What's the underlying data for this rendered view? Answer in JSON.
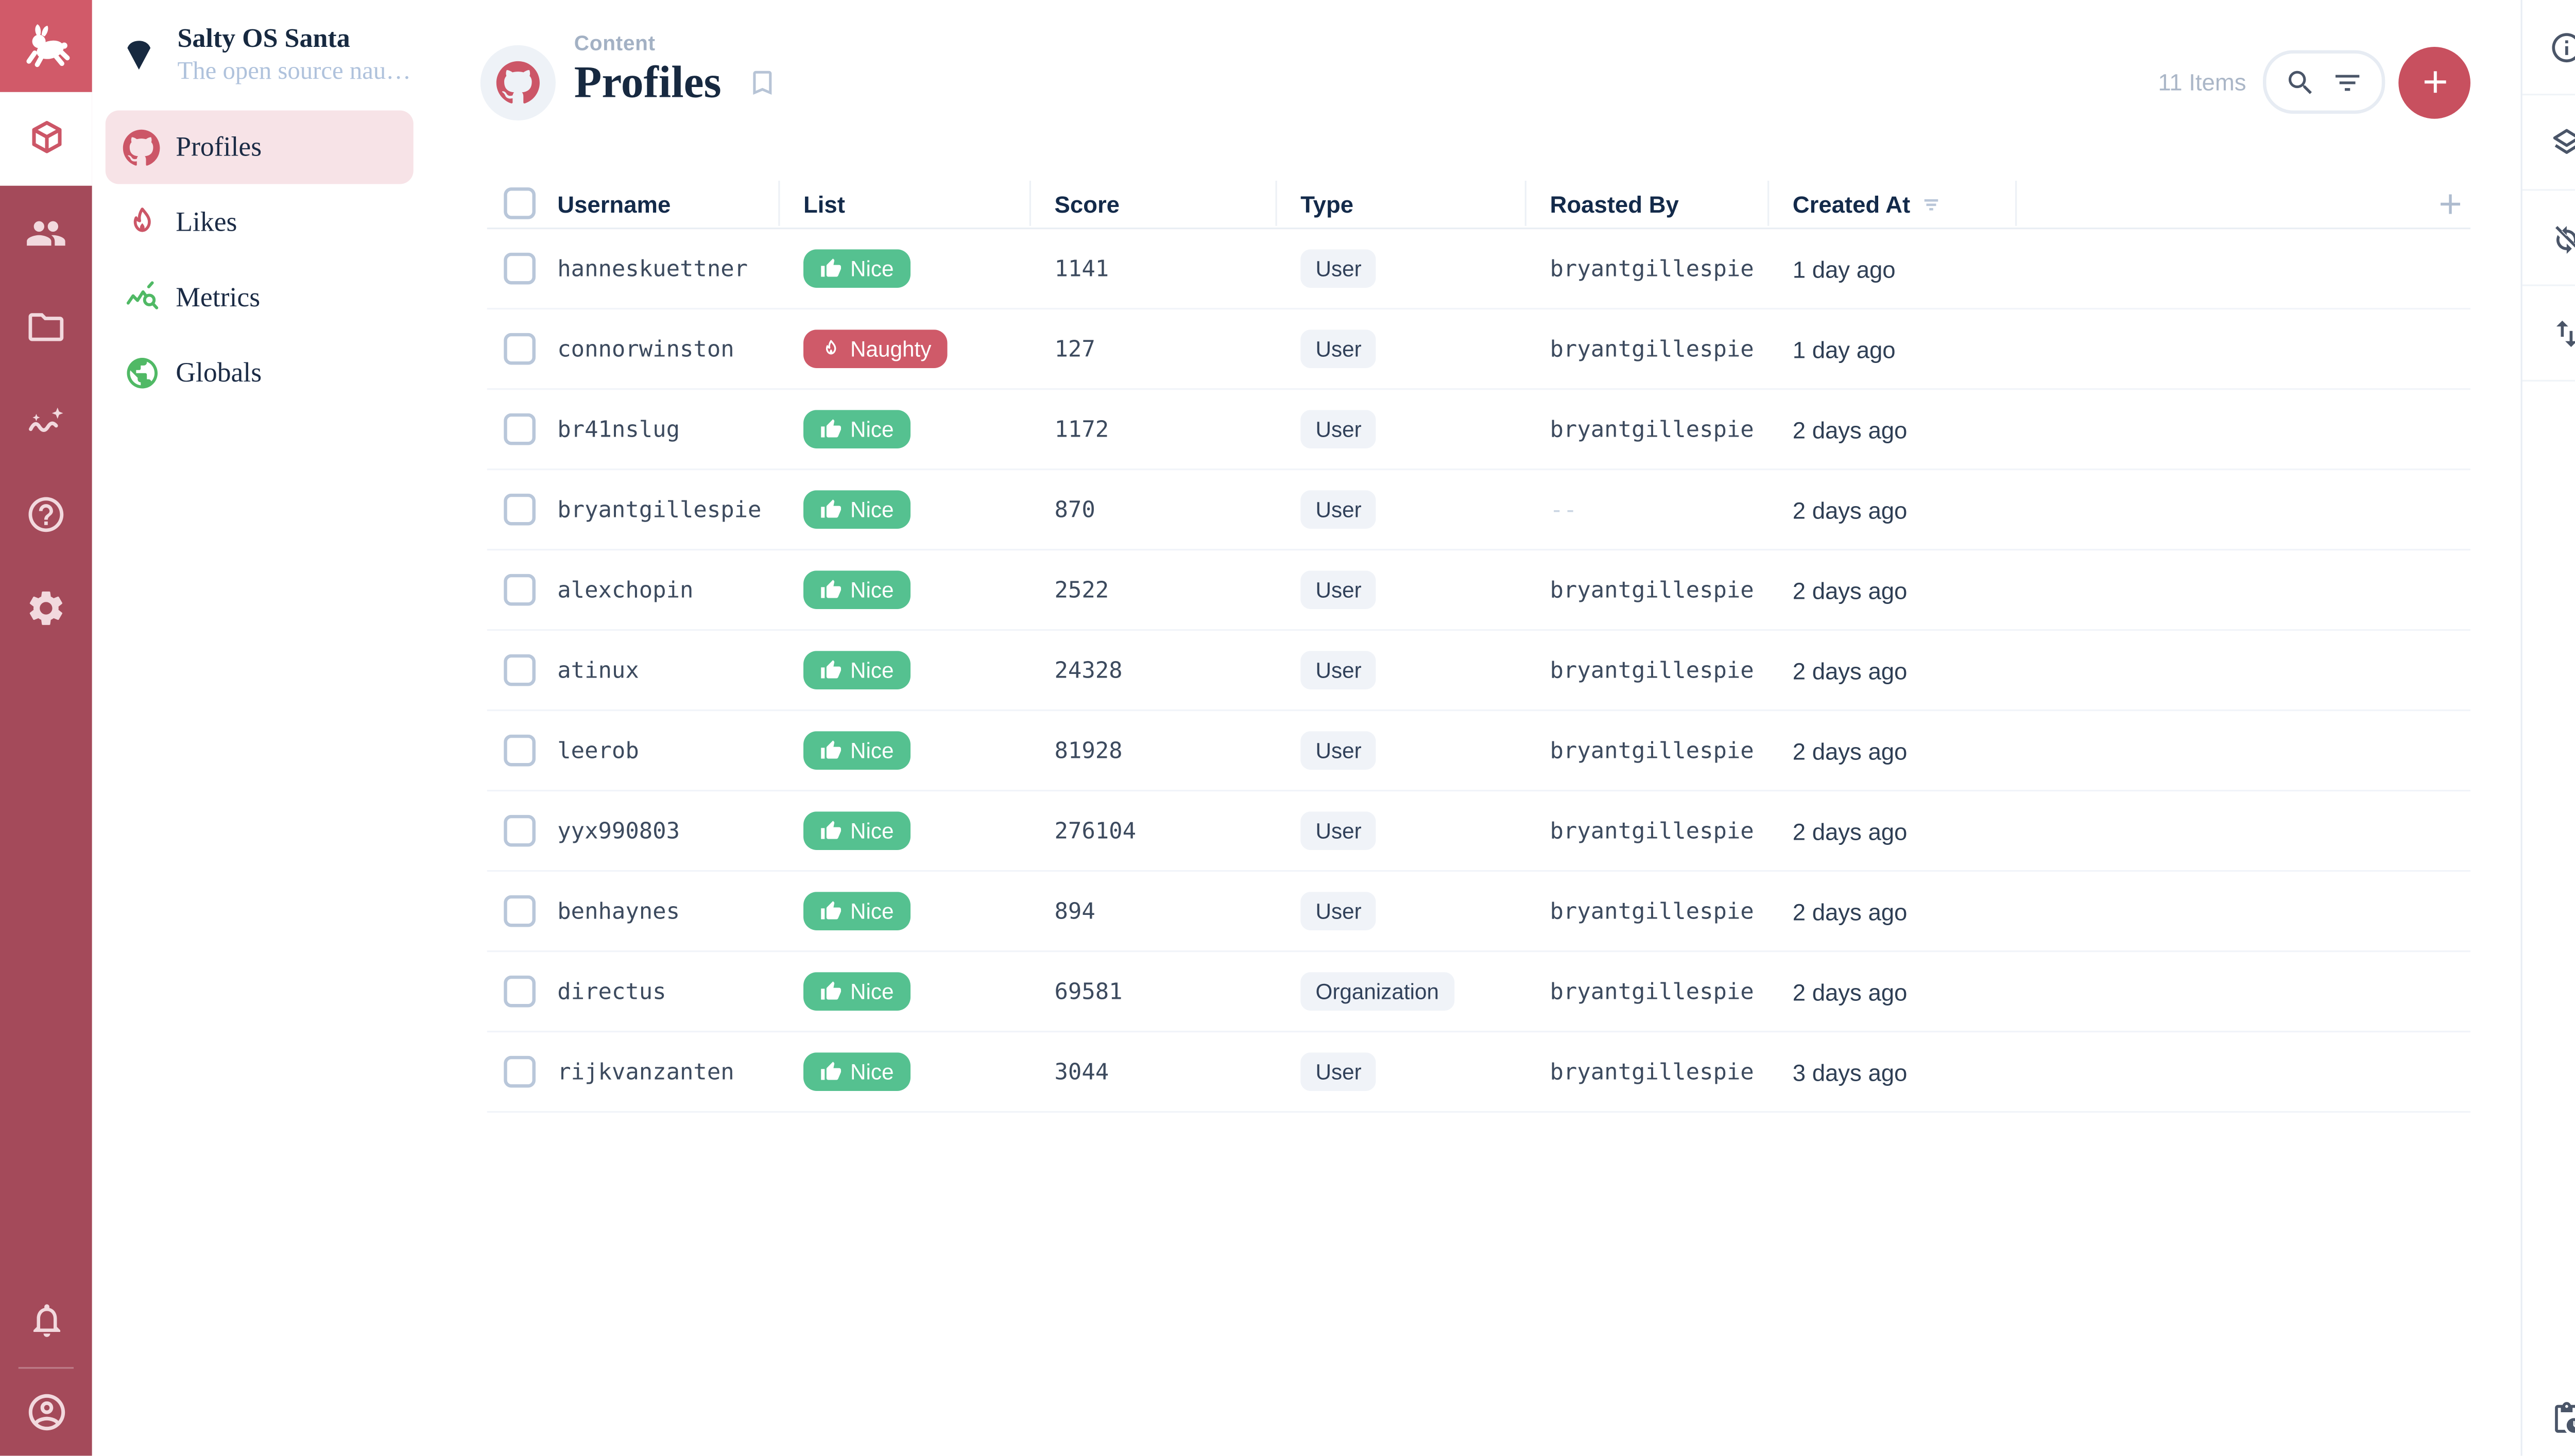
{
  "project": {
    "name": "Salty OS Santa",
    "tagline": "The open source naug...",
    "icon": "diamond-icon",
    "logo_icon": "rabbit-logo"
  },
  "module_bar": {
    "active": {
      "name": "module-content",
      "icon": "box-icon"
    },
    "items": [
      {
        "name": "module-user-directory",
        "icon": "users-icon"
      },
      {
        "name": "module-files",
        "icon": "folder-icon"
      },
      {
        "name": "module-insights",
        "icon": "insights-icon"
      },
      {
        "name": "module-help",
        "icon": "help-icon"
      },
      {
        "name": "module-settings",
        "icon": "settings-icon"
      }
    ],
    "bottom": [
      {
        "name": "notifications-button",
        "icon": "bell-icon"
      },
      {
        "name": "user-menu",
        "icon": "account-icon"
      }
    ]
  },
  "sidebar": {
    "items": [
      {
        "label": "Profiles",
        "icon": "github-icon",
        "color": "#CC5667",
        "active": true
      },
      {
        "label": "Likes",
        "icon": "flame-icon",
        "color": "#CC5667",
        "active": false
      },
      {
        "label": "Metrics",
        "icon": "chart-search-icon",
        "color": "#50B965",
        "active": false
      },
      {
        "label": "Globals",
        "icon": "globe-icon",
        "color": "#50B965",
        "active": false
      }
    ]
  },
  "header": {
    "breadcrumb": "Content",
    "title": "Profiles",
    "collection_icon": "github-icon",
    "bookmark_icon": "bookmark-icon"
  },
  "toolbar": {
    "items_count": "11 Items",
    "search_icon": "search-icon",
    "filter_icon": "filter-icon",
    "add_icon": "plus-icon"
  },
  "table": {
    "columns": [
      {
        "key": "username",
        "label": "Username"
      },
      {
        "key": "list",
        "label": "List"
      },
      {
        "key": "score",
        "label": "Score"
      },
      {
        "key": "type",
        "label": "Type"
      },
      {
        "key": "roasted_by",
        "label": "Roasted By"
      },
      {
        "key": "created_at",
        "label": "Created At",
        "sorted": true
      }
    ],
    "badges": {
      "nice": {
        "label": "Nice",
        "icon": "thumb-up-icon",
        "color": "#55C190"
      },
      "naughty": {
        "label": "Naughty",
        "icon": "flame-icon",
        "color": "#CF5A69"
      }
    },
    "null_display": "--",
    "rows": [
      {
        "username": "hanneskuettner",
        "list": "nice",
        "score": "1141",
        "type": "User",
        "roasted_by": "bryantgillespie",
        "created_at": "1 day ago"
      },
      {
        "username": "connorwinston",
        "list": "naughty",
        "score": "127",
        "type": "User",
        "roasted_by": "bryantgillespie",
        "created_at": "1 day ago"
      },
      {
        "username": "br41nslug",
        "list": "nice",
        "score": "1172",
        "type": "User",
        "roasted_by": "bryantgillespie",
        "created_at": "2 days ago"
      },
      {
        "username": "bryantgillespie",
        "list": "nice",
        "score": "870",
        "type": "User",
        "roasted_by": null,
        "created_at": "2 days ago"
      },
      {
        "username": "alexchopin",
        "list": "nice",
        "score": "2522",
        "type": "User",
        "roasted_by": "bryantgillespie",
        "created_at": "2 days ago"
      },
      {
        "username": "atinux",
        "list": "nice",
        "score": "24328",
        "type": "User",
        "roasted_by": "bryantgillespie",
        "created_at": "2 days ago"
      },
      {
        "username": "leerob",
        "list": "nice",
        "score": "81928",
        "type": "User",
        "roasted_by": "bryantgillespie",
        "created_at": "2 days ago"
      },
      {
        "username": "yyx990803",
        "list": "nice",
        "score": "276104",
        "type": "User",
        "roasted_by": "bryantgillespie",
        "created_at": "2 days ago"
      },
      {
        "username": "benhaynes",
        "list": "nice",
        "score": "894",
        "type": "User",
        "roasted_by": "bryantgillespie",
        "created_at": "2 days ago"
      },
      {
        "username": "directus",
        "list": "nice",
        "score": "69581",
        "type": "Organization",
        "roasted_by": "bryantgillespie",
        "created_at": "2 days ago"
      },
      {
        "username": "rijkvanzanten",
        "list": "nice",
        "score": "3044",
        "type": "User",
        "roasted_by": "bryantgillespie",
        "created_at": "3 days ago"
      }
    ]
  },
  "right_rail": {
    "items": [
      {
        "name": "sidebar-info-button",
        "icon": "info-icon"
      },
      {
        "name": "sidebar-layout-options-button",
        "icon": "layers-icon"
      },
      {
        "name": "sidebar-sync-button",
        "icon": "sync-disabled-icon"
      },
      {
        "name": "sidebar-import-export-button",
        "icon": "import-export-icon"
      }
    ],
    "bottom": {
      "name": "activity-log-button",
      "icon": "pending-actions-icon"
    }
  },
  "colors": {
    "brand": "#CC5667",
    "logo_bg": "#D15A69",
    "rail_bg": "#A44A5A",
    "rail_icon": "#F2D9DE",
    "active_nav": "#F7E3E7",
    "text_dark": "#172940",
    "tagline": "#AFC2DC",
    "add_btn": "#C8505F",
    "nice_green": "#55C190",
    "naughty_red": "#CF5A69"
  }
}
